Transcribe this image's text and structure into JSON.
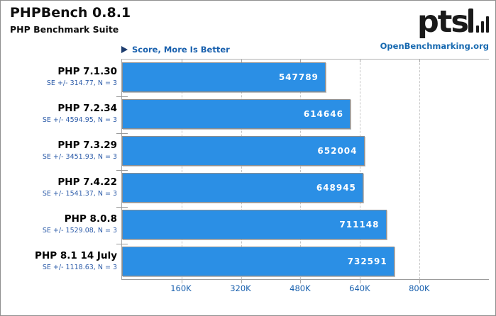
{
  "header": {
    "title": "PHPBench 0.8.1",
    "subtitle": "PHP Benchmark Suite",
    "logo_text": "pts",
    "openbenchmarking_label": "OpenBenchmarking.org"
  },
  "legend": {
    "label": "Score, More Is Better"
  },
  "chart_data": {
    "type": "bar",
    "orientation": "horizontal",
    "title": "PHPBench 0.8.1",
    "subtitle": "PHP Benchmark Suite",
    "unit_label": "Score, More Is Better",
    "categories": [
      "PHP 7.1.30",
      "PHP 7.2.34",
      "PHP 7.3.29",
      "PHP 7.4.22",
      "PHP 8.0.8",
      "PHP 8.1 14 July"
    ],
    "values": [
      547789,
      614646,
      652004,
      648945,
      711148,
      732591
    ],
    "error_labels": [
      "SE +/- 314.77, N = 3",
      "SE +/- 4594.95, N = 3",
      "SE +/- 3451.93, N = 3",
      "SE +/- 1541.37, N = 3",
      "SE +/- 1529.08, N = 3",
      "SE +/- 1118.63, N = 3"
    ],
    "x_ticks": [
      {
        "label": "160K",
        "value": 160000
      },
      {
        "label": "320K",
        "value": 320000
      },
      {
        "label": "480K",
        "value": 480000
      },
      {
        "label": "640K",
        "value": 640000
      },
      {
        "label": "800K",
        "value": 800000
      }
    ],
    "axis_min": 0,
    "axis_max": 987000,
    "grid": "vertical-dashed",
    "legend_position": "top-left",
    "colors": {
      "bar": "#2b8fe5",
      "bar_border": "#8f8f8f",
      "value_text": "#ffffff",
      "category_text": "#000000",
      "error_text": "#2d5ca9",
      "tick_text": "#1a61ae",
      "link_text": "#1769b0",
      "legend_arrow": "#1d3c6e",
      "grid_line": "#c6c6c6",
      "axis_line": "#a6a6a6"
    }
  }
}
